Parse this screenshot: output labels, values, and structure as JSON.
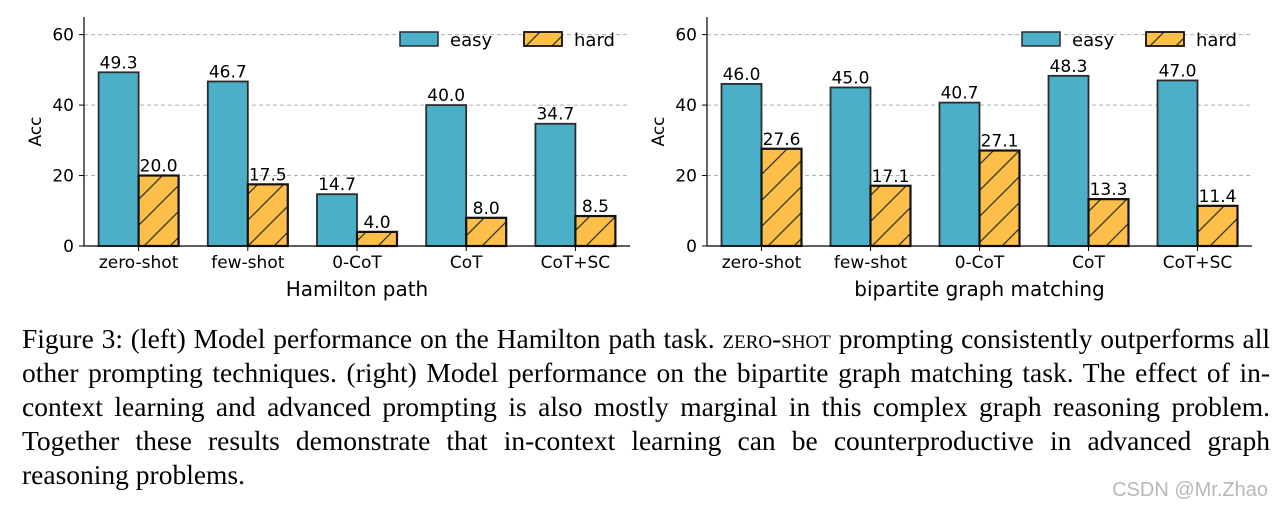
{
  "colors": {
    "easy": "#4bafc8",
    "hard": "#fdbe4a",
    "edge": "#2b2b2b",
    "grid": "#b0b0b0",
    "axis": "#000000"
  },
  "chart_data": [
    {
      "type": "bar",
      "title": "",
      "xlabel": "Hamilton path",
      "ylabel": "Acc",
      "ylim": [
        0,
        65
      ],
      "yticks": [
        0,
        20,
        40,
        60
      ],
      "grid": true,
      "legend_position": "top-right",
      "categories": [
        "zero-shot",
        "few-shot",
        "0-CoT",
        "CoT",
        "CoT+SC"
      ],
      "series": [
        {
          "name": "easy",
          "values": [
            49.3,
            46.7,
            14.7,
            40.0,
            34.7
          ],
          "labels": [
            "49.3",
            "46.7",
            "14.7",
            "40.0",
            "34.7"
          ]
        },
        {
          "name": "hard",
          "values": [
            20.0,
            17.5,
            4.0,
            8.0,
            8.5
          ],
          "labels": [
            "20.0",
            "17.5",
            "4.0",
            "8.0",
            "8.5"
          ]
        }
      ]
    },
    {
      "type": "bar",
      "title": "",
      "xlabel": "bipartite graph matching",
      "ylabel": "Acc",
      "ylim": [
        0,
        65
      ],
      "yticks": [
        0,
        20,
        40,
        60
      ],
      "grid": true,
      "legend_position": "top-right",
      "categories": [
        "zero-shot",
        "few-shot",
        "0-CoT",
        "CoT",
        "CoT+SC"
      ],
      "series": [
        {
          "name": "easy",
          "values": [
            46.0,
            45.0,
            40.7,
            48.3,
            47.0
          ],
          "labels": [
            "46.0",
            "45.0",
            "40.7",
            "48.3",
            "47.0"
          ]
        },
        {
          "name": "hard",
          "values": [
            27.6,
            17.1,
            27.1,
            13.3,
            11.4
          ],
          "labels": [
            "27.6",
            "17.1",
            "27.1",
            "13.3",
            "11.4"
          ]
        }
      ]
    }
  ],
  "caption": {
    "prefix": "Figure 3: (left) Model performance on the Hamilton path task. ",
    "smallcaps": "zero-shot",
    "rest": " prompting consistently outperforms all other prompting techniques. (right) Model performance on the bipartite graph matching task. The effect of in-context learning and advanced prompting is also mostly marginal in this complex graph reasoning problem. Together these results demonstrate that in-context learning can be counterproductive in advanced graph reasoning problems."
  },
  "watermark": "CSDN @Mr.Zhao"
}
